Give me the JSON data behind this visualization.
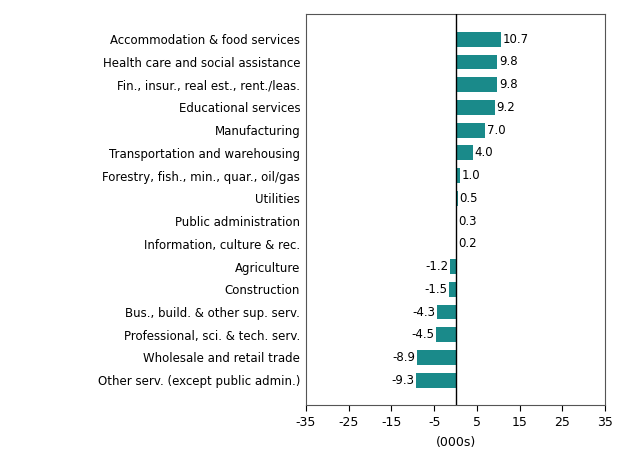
{
  "categories": [
    "Other serv. (except public admin.)",
    "Wholesale and retail trade",
    "Professional, sci. & tech. serv.",
    "Bus., build. & other sup. serv.",
    "Construction",
    "Agriculture",
    "Information, culture & rec.",
    "Public administration",
    "Utilities",
    "Forestry, fish., min., quar., oil/gas",
    "Transportation and warehousing",
    "Manufacturing",
    "Educational services",
    "Fin., insur., real est., rent./leas.",
    "Health care and social assistance",
    "Accommodation & food services"
  ],
  "values": [
    -9.3,
    -8.9,
    -4.5,
    -4.3,
    -1.5,
    -1.2,
    0.2,
    0.3,
    0.5,
    1.0,
    4.0,
    7.0,
    9.2,
    9.8,
    9.8,
    10.7
  ],
  "bar_color": "#1a8a8a",
  "xlabel": "(000s)",
  "xlim": [
    -35,
    35
  ],
  "xticks": [
    -35,
    -25,
    -15,
    -5,
    5,
    15,
    25,
    35
  ],
  "xtick_labels": [
    "-35",
    "-25",
    "-15",
    "-5",
    "5",
    "15",
    "25",
    "35"
  ],
  "background_color": "#ffffff",
  "label_fontsize": 8.5,
  "value_fontsize": 8.5,
  "xlabel_fontsize": 9
}
